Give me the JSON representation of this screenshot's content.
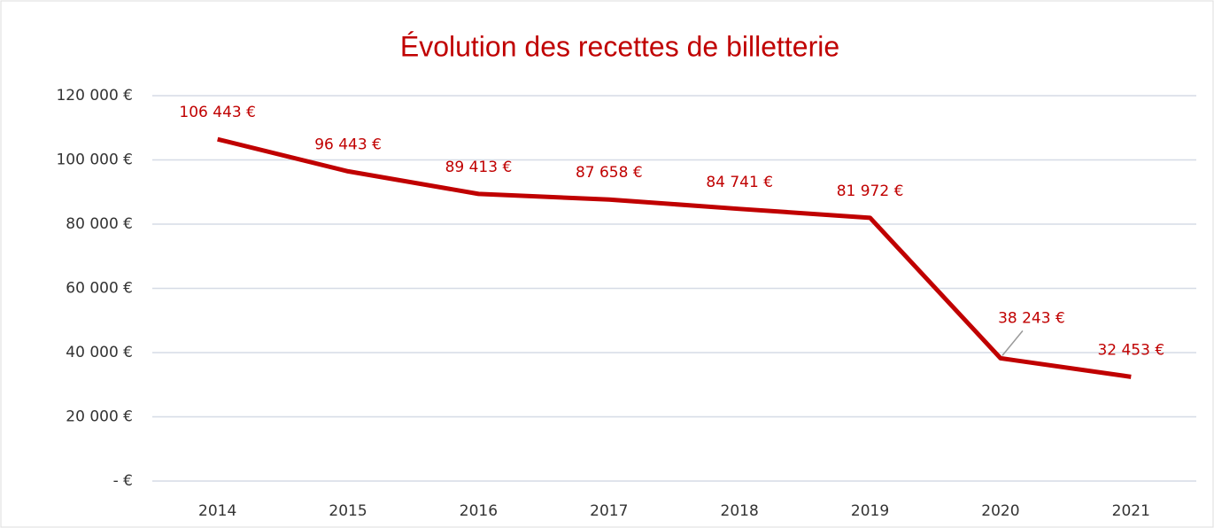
{
  "chart_data": {
    "type": "line",
    "title": "Évolution des recettes de billetterie",
    "categories": [
      "2014",
      "2015",
      "2016",
      "2017",
      "2018",
      "2019",
      "2020",
      "2021"
    ],
    "series": [
      {
        "color": "#c00000",
        "values": [
          106443,
          96443,
          89413,
          87658,
          84741,
          81972,
          38243,
          32453
        ],
        "value_labels": [
          "106 443 €",
          "96 443 €",
          "89 413 €",
          "87 658 €",
          "84 741 €",
          "81 972 €",
          "38 243 €",
          "32 453 €"
        ]
      }
    ],
    "ylim": [
      0,
      120000
    ],
    "yticks": [
      {
        "value": 0,
        "label": "- €"
      },
      {
        "value": 20000,
        "label": "20 000 €"
      },
      {
        "value": 40000,
        "label": "40 000 €"
      },
      {
        "value": 60000,
        "label": "60 000 €"
      },
      {
        "value": 80000,
        "label": "80 000 €"
      },
      {
        "value": 100000,
        "label": "100 000 €"
      },
      {
        "value": 120000,
        "label": "120 000 €"
      }
    ],
    "grid": true
  }
}
